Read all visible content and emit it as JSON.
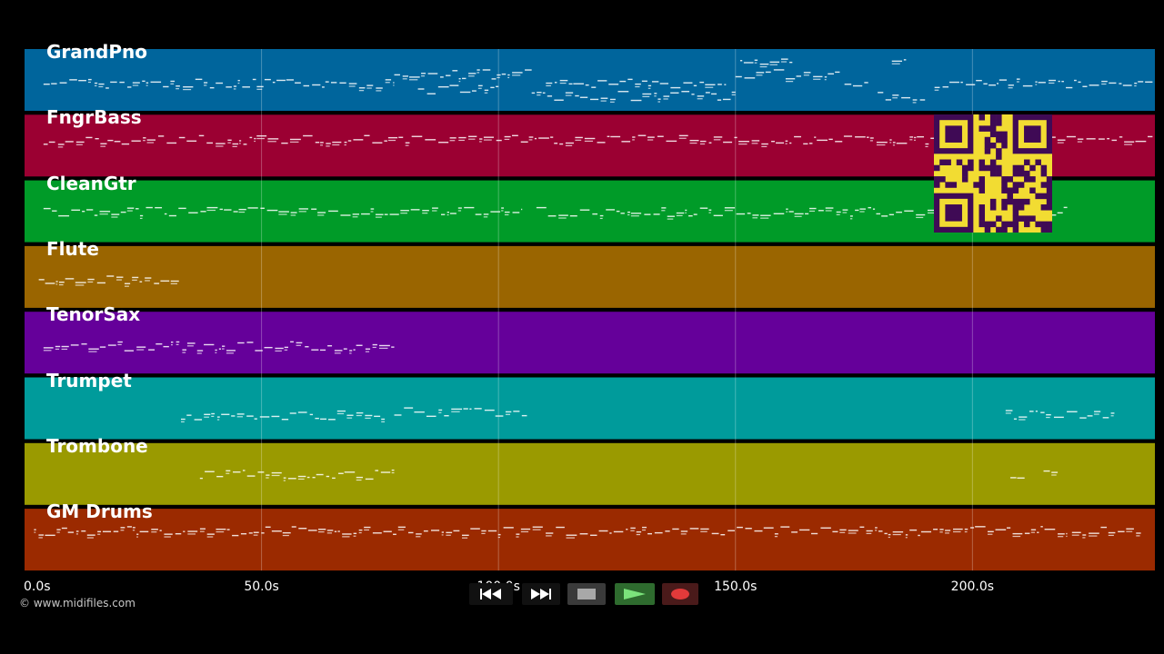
{
  "tracks": [
    {
      "name": "GrandPno",
      "color": "#00659c"
    },
    {
      "name": "FngrBass",
      "color": "#9b0032"
    },
    {
      "name": "CleanGtr",
      "color": "#009b28"
    },
    {
      "name": "Flute",
      "color": "#9a6500"
    },
    {
      "name": "TenorSax",
      "color": "#65009a"
    },
    {
      "name": "Trumpet",
      "color": "#009b9b"
    },
    {
      "name": "Trombone",
      "color": "#9a9a00"
    },
    {
      "name": "GM Drums",
      "color": "#9b2a00"
    }
  ],
  "timeline": {
    "labels": [
      "0.0s",
      "50.0s",
      "100.0s",
      "150.0s",
      "200.0s"
    ],
    "max_seconds": 238.5,
    "tick_seconds": [
      0,
      50,
      100,
      150,
      200
    ]
  },
  "copyright": "© www.midifiles.com",
  "transport": {
    "buttons": [
      {
        "icon": "rewind-icon"
      },
      {
        "icon": "fast-forward-icon"
      },
      {
        "icon": "stop-icon"
      },
      {
        "icon": "play-icon"
      },
      {
        "icon": "record-icon"
      }
    ]
  },
  "qr": {
    "fg": "#3f0a55",
    "bg": "#f2dc32"
  },
  "notes": {
    "GrandPno": [
      {
        "segments": [
          [
            4,
            78
          ],
          [
            110,
            148
          ],
          [
            173,
            178
          ],
          [
            192,
            238
          ]
        ],
        "pitch": 0.45
      },
      {
        "segments": [
          [
            78,
            107
          ],
          [
            150,
            172
          ]
        ],
        "pitch": 0.6
      },
      {
        "segments": [
          [
            107,
            150
          ],
          [
            180,
            190
          ]
        ],
        "pitch": 0.25
      },
      {
        "segments": [
          [
            151,
            162
          ],
          [
            183,
            186
          ]
        ],
        "pitch": 0.8
      },
      {
        "segments": [
          [
            83,
            100
          ]
        ],
        "pitch": 0.35
      }
    ],
    "FngrBass": [
      {
        "segments": [
          [
            4,
            238
          ]
        ],
        "pitch": 0.6
      }
    ],
    "CleanGtr": [
      {
        "segments": [
          [
            4,
            105
          ],
          [
            108,
            220
          ]
        ],
        "pitch": 0.5
      }
    ],
    "Flute": [
      {
        "segments": [
          [
            3,
            33
          ]
        ],
        "pitch": 0.45
      }
    ],
    "TenorSax": [
      {
        "segments": [
          [
            4,
            78
          ]
        ],
        "pitch": 0.45
      }
    ],
    "Trumpet": [
      {
        "segments": [
          [
            33,
            76
          ],
          [
            207,
            230
          ]
        ],
        "pitch": 0.4
      },
      {
        "segments": [
          [
            78,
            106
          ]
        ],
        "pitch": 0.45
      }
    ],
    "Trombone": [
      {
        "segments": [
          [
            37,
            78
          ]
        ],
        "pitch": 0.5
      },
      {
        "segments": [
          [
            208,
            211
          ],
          [
            215,
            218
          ]
        ],
        "pitch": 0.5
      }
    ],
    "GM Drums": [
      {
        "segments": [
          [
            2,
            220
          ],
          [
            221,
            236
          ]
        ],
        "pitch": 0.65
      }
    ]
  }
}
